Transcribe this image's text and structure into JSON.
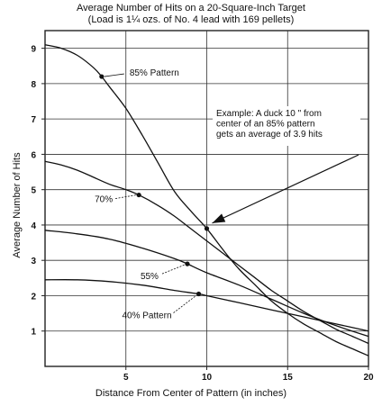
{
  "chart_data": {
    "type": "line",
    "title": "Average Number of Hits on a 20-Square-Inch Target",
    "subtitle": "(Load is 1¼ ozs. of No. 4 lead with 169 pellets)",
    "xlabel": "Distance From Center of Pattern (in inches)",
    "ylabel": "Average Number of Hits",
    "xlim": [
      0,
      20
    ],
    "ylim": [
      0,
      9.5
    ],
    "x_ticks": [
      5,
      10,
      15,
      20
    ],
    "y_ticks": [
      1,
      2,
      3,
      4,
      5,
      6,
      7,
      8,
      9
    ],
    "grid": "horizontal",
    "series": [
      {
        "name": "85% Pattern",
        "x": [
          0,
          1,
          2,
          3,
          3.5,
          4,
          5,
          6,
          7,
          8,
          9,
          10,
          11,
          12,
          13,
          14,
          15,
          16,
          17,
          18,
          19,
          20
        ],
        "y": [
          9.1,
          9.0,
          8.8,
          8.45,
          8.2,
          7.9,
          7.3,
          6.55,
          5.75,
          4.95,
          4.4,
          3.9,
          3.3,
          2.75,
          2.3,
          1.85,
          1.5,
          1.2,
          0.95,
          0.7,
          0.5,
          0.3
        ]
      },
      {
        "name": "70%",
        "x": [
          0,
          1,
          2,
          3,
          4,
          5,
          5.8,
          7,
          8,
          9,
          10,
          11,
          12,
          13,
          14,
          15,
          16,
          17,
          18,
          19,
          20
        ],
        "y": [
          5.8,
          5.7,
          5.55,
          5.35,
          5.15,
          5.0,
          4.85,
          4.55,
          4.25,
          3.9,
          3.55,
          3.2,
          2.85,
          2.5,
          2.15,
          1.85,
          1.55,
          1.3,
          1.05,
          0.85,
          0.65
        ]
      },
      {
        "name": "55%",
        "x": [
          0,
          2,
          4,
          6,
          8,
          8.8,
          10,
          12,
          14,
          16,
          18,
          20
        ],
        "y": [
          3.85,
          3.75,
          3.6,
          3.35,
          3.05,
          2.9,
          2.65,
          2.3,
          1.9,
          1.5,
          1.15,
          0.85
        ]
      },
      {
        "name": "40% Pattern",
        "x": [
          0,
          2,
          4,
          6,
          8,
          9.5,
          10,
          12,
          14,
          16,
          18,
          20
        ],
        "y": [
          2.45,
          2.45,
          2.4,
          2.3,
          2.15,
          2.05,
          2.0,
          1.8,
          1.6,
          1.4,
          1.2,
          1.0
        ]
      }
    ],
    "annotations": [
      {
        "text": "85% Pattern",
        "x": 3.5,
        "y": 8.2
      },
      {
        "text": "70%",
        "x": 5.8,
        "y": 4.85
      },
      {
        "text": "55%",
        "x": 8.8,
        "y": 2.9
      },
      {
        "text": "40%  Pattern",
        "x": 9.5,
        "y": 2.05
      },
      {
        "lines": [
          "Example: A duck  10 \" from",
          "center of an 85% pattern",
          "gets an average of 3.9 hits"
        ],
        "x": 10,
        "y": 3.9
      }
    ]
  }
}
